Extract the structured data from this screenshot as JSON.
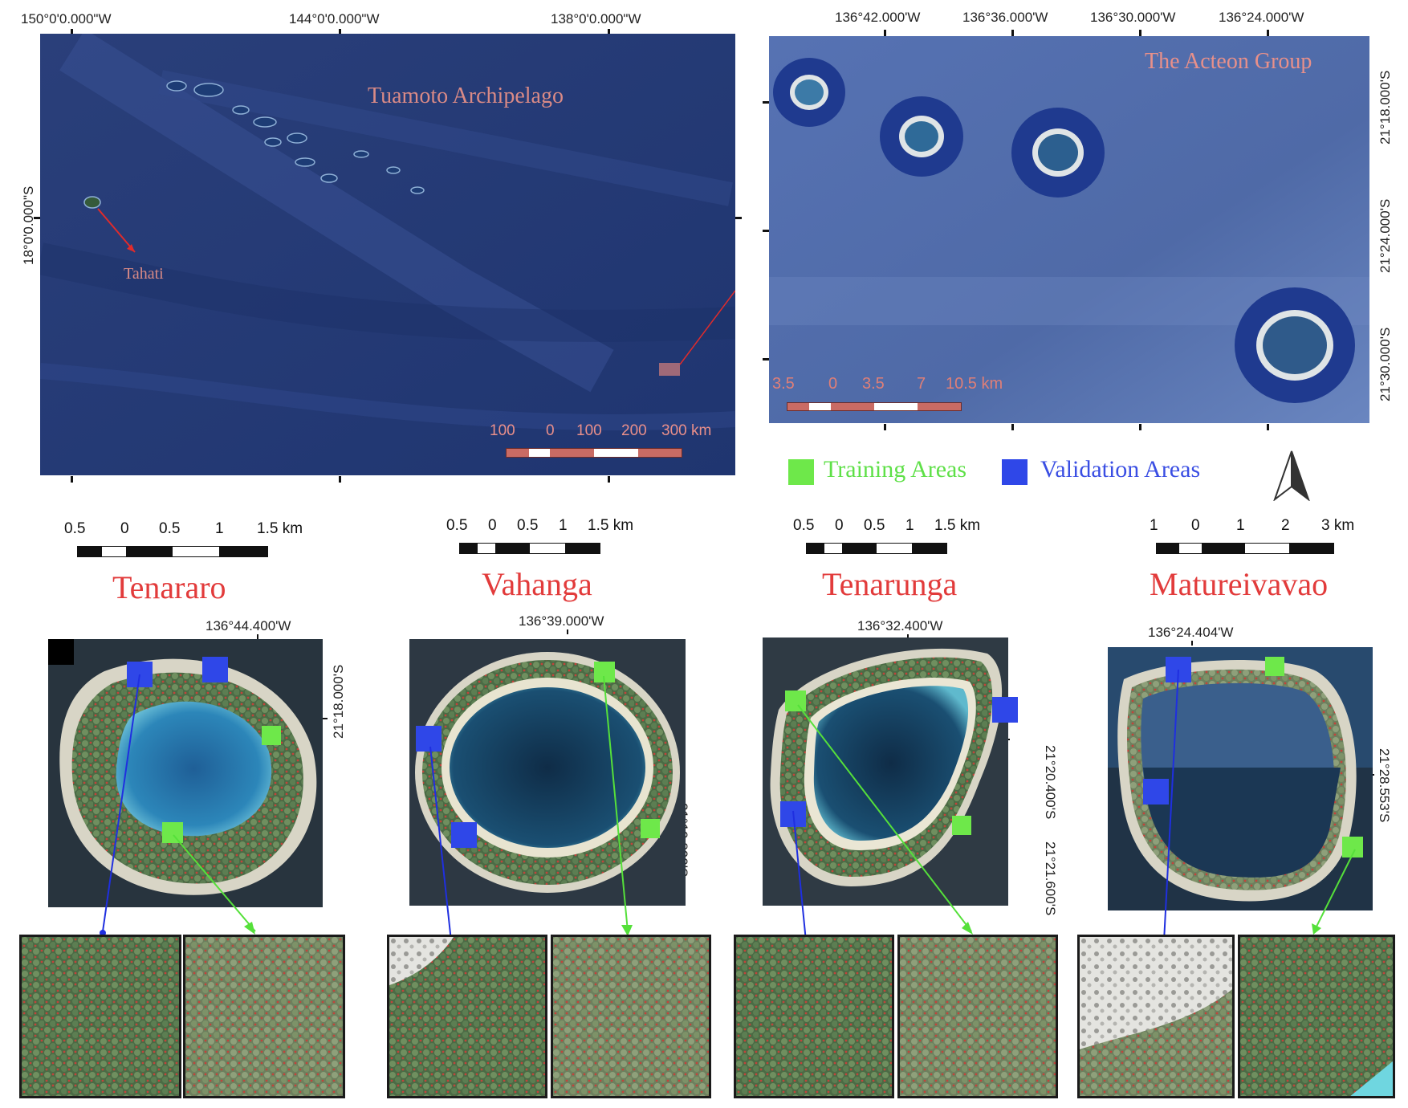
{
  "overview": {
    "top_coords": [
      "150°0'0.000\"W",
      "144°0'0.000\"W",
      "138°0'0.000\"W"
    ],
    "left_coord": "18°0'0.000\"S",
    "label_archipelago": "Tuamoto Archipelago",
    "label_island": "Tahati",
    "scale_labels": [
      "100",
      "0",
      "100",
      "200",
      "300 km"
    ]
  },
  "acteon": {
    "title": "The Acteon Group",
    "top_coords": [
      "136°42.000'W",
      "136°36.000'W",
      "136°30.000'W",
      "136°24.000'W"
    ],
    "right_coords": [
      "21°18.000'S",
      "21°24.000'S",
      "21°30.000'S"
    ],
    "scale_labels": [
      "3.5",
      "0",
      "3.5",
      "7",
      "10.5 km"
    ]
  },
  "legend": {
    "training": "Training Areas",
    "validation": "Validation Areas",
    "training_color": "#6ee84a",
    "validation_color": "#2f47e8"
  },
  "atolls": [
    {
      "name": "Tenararo",
      "scale_labels": [
        "0.5",
        "0",
        "0.5",
        "1",
        "1.5 km"
      ],
      "lon": "136°44.400'W",
      "lat": [
        "21°18.000'S"
      ]
    },
    {
      "name": "Vahanga",
      "scale_labels": [
        "0.5",
        "0",
        "0.5",
        "1",
        "1.5 km"
      ],
      "lon": "136°39.000'W",
      "lat": [
        "21°19.800'S"
      ]
    },
    {
      "name": "Tenarunga",
      "scale_labels": [
        "0.5",
        "0",
        "0.5",
        "1",
        "1.5 km"
      ],
      "lon": "136°32.400'W",
      "lat": [
        "21°20.400'S",
        "21°21.600'S"
      ]
    },
    {
      "name": "Matureivavao",
      "scale_labels": [
        "1",
        "0",
        "1",
        "2",
        "3 km"
      ],
      "lon": "136°24.404'W",
      "lat": [
        "21°28.553'S"
      ]
    }
  ]
}
